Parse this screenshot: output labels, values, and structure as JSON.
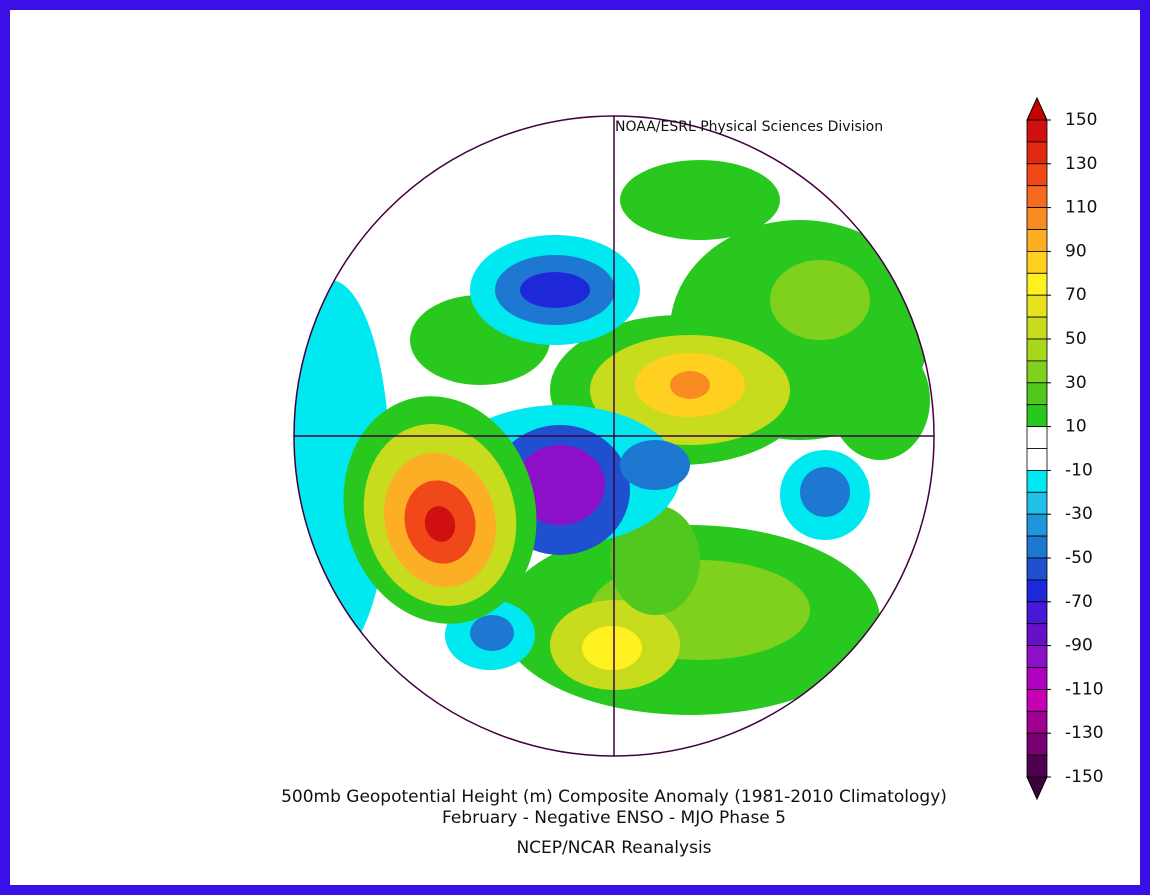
{
  "credit": "NOAA/ESRL Physical Sciences Division",
  "title": "500mb Geopotential Height (m) Composite Anomaly (1981-2010 Climatology)",
  "subtitle": "February - Negative ENSO - MJO Phase 5",
  "source": "NCEP/NCAR Reanalysis",
  "colorbar": {
    "ticks": [
      150,
      130,
      110,
      90,
      70,
      50,
      30,
      10,
      -10,
      -30,
      -50,
      -70,
      -90,
      -110,
      -130,
      -150
    ],
    "colors": [
      "#d01010",
      "#e02a10",
      "#f04818",
      "#f56a1e",
      "#f88c22",
      "#fcae24",
      "#ffd020",
      "#fff020",
      "#e6e21e",
      "#c8dc1e",
      "#a8d81e",
      "#80d01e",
      "#50c81e",
      "#28c81e",
      "#ffffff",
      "#ffffff",
      "#00e8f0",
      "#20c0e8",
      "#1e96dc",
      "#1e78d2",
      "#1e50d0",
      "#1e28d8",
      "#4818d8",
      "#6810c8",
      "#8c10c8",
      "#b000c0",
      "#c800b4",
      "#a00090",
      "#780070",
      "#500050"
    ],
    "over_color": "#c80000",
    "under_color": "#3c003c"
  }
}
